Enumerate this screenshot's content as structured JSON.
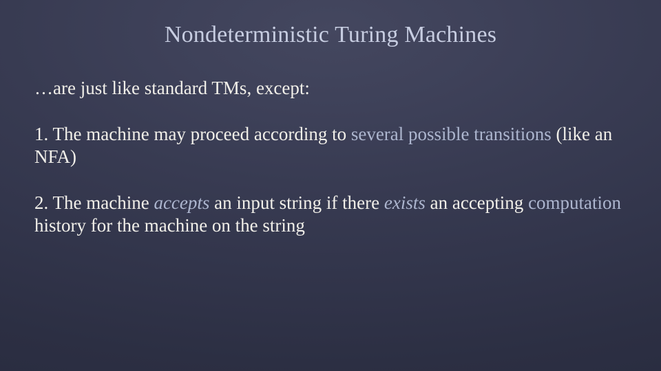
{
  "slide": {
    "background": {
      "gradient_center": "#44475f",
      "gradient_mid": "#383b52",
      "gradient_edge": "#272a3d"
    },
    "title": {
      "text": "Nondeterministic Turing Machines",
      "color": "#c7cde1",
      "fontsize": 34,
      "font_family": "Georgia, serif",
      "align": "center"
    },
    "body": {
      "fontsize": 27,
      "color": "#f1efe9",
      "highlight_color": "#adb6cf",
      "font_family": "Georgia, serif",
      "intro": "…are just like standard TMs, except:",
      "item1": {
        "prefix": "1. The machine may proceed according to ",
        "highlight": "several possible transitions",
        "suffix": " (like an NFA)"
      },
      "item2": {
        "p1": "2. The machine ",
        "accepts": "accepts",
        "space1": "   ",
        "p2": "an input string if there ",
        "exists": "exists",
        "space2": "   ",
        "p3": "an accepting ",
        "hl_tail": "computation",
        "tail": " history for the machine on the string"
      }
    }
  }
}
